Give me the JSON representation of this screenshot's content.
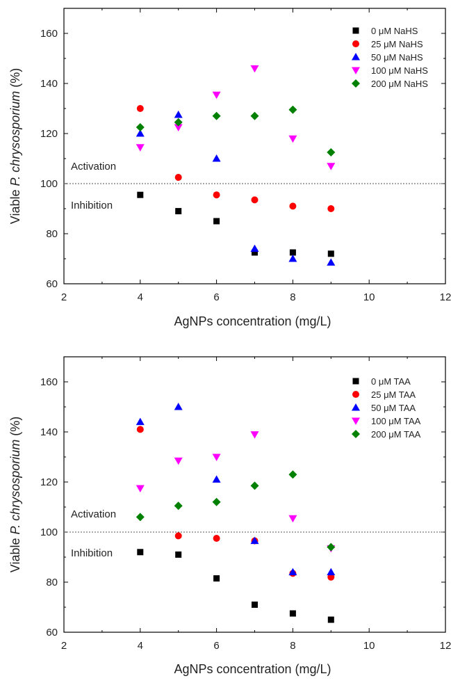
{
  "chart_data": [
    {
      "type": "scatter",
      "title": "",
      "xlabel": "AgNPs concentration (mg/L)",
      "ylabel_prefix": "Viable ",
      "ylabel_italic": "P. chrysosporium",
      "ylabel_suffix": " (%)",
      "xlim": [
        2,
        12
      ],
      "ylim": [
        60,
        170
      ],
      "xticks": [
        2,
        4,
        6,
        8,
        10,
        12
      ],
      "yticks": [
        60,
        80,
        100,
        120,
        140,
        160
      ],
      "grid": false,
      "legend_position": "top-right",
      "reference_line": 100,
      "annotations": {
        "activation": "Activation",
        "inhibition": "Inhibition"
      },
      "x": [
        4,
        5,
        6,
        7,
        8,
        9
      ],
      "series": [
        {
          "name": "0 μM NaHS",
          "marker": "square",
          "color": "#000000",
          "values": [
            95.5,
            89,
            85,
            72.5,
            72.5,
            72
          ]
        },
        {
          "name": "25 μM NaHS",
          "marker": "circle",
          "color": "#ff0000",
          "values": [
            130,
            102.5,
            95.5,
            93.5,
            91,
            90
          ]
        },
        {
          "name": "50 μM NaHS",
          "marker": "triangle-up",
          "color": "#0000ff",
          "values": [
            120,
            127.5,
            110,
            74,
            70,
            68.5
          ]
        },
        {
          "name": "100 μM NaHS",
          "marker": "triangle-down",
          "color": "#ff00ff",
          "values": [
            114.5,
            122.5,
            135.5,
            146,
            118,
            107
          ]
        },
        {
          "name": "200 μM NaHS",
          "marker": "diamond",
          "color": "#008000",
          "values": [
            122.5,
            124.5,
            127,
            127,
            129.5,
            112.5
          ]
        }
      ]
    },
    {
      "type": "scatter",
      "title": "",
      "xlabel": "AgNPs concentration (mg/L)",
      "ylabel_prefix": "Viable ",
      "ylabel_italic": "P. chrysosporium",
      "ylabel_suffix": " (%)",
      "xlim": [
        2,
        12
      ],
      "ylim": [
        60,
        170
      ],
      "xticks": [
        2,
        4,
        6,
        8,
        10,
        12
      ],
      "yticks": [
        60,
        80,
        100,
        120,
        140,
        160
      ],
      "grid": false,
      "legend_position": "top-right",
      "reference_line": 100,
      "annotations": {
        "activation": "Activation",
        "inhibition": "Inhibition"
      },
      "x": [
        4,
        5,
        6,
        7,
        8,
        9
      ],
      "series": [
        {
          "name": "0 μM TAA",
          "marker": "square",
          "color": "#000000",
          "values": [
            92,
            91,
            81.5,
            71,
            67.5,
            65
          ]
        },
        {
          "name": "25 μM TAA",
          "marker": "circle",
          "color": "#ff0000",
          "values": [
            141,
            98.5,
            97.5,
            96.5,
            83.5,
            82
          ]
        },
        {
          "name": "50 μM TAA",
          "marker": "triangle-up",
          "color": "#0000ff",
          "values": [
            144,
            150,
            121,
            96.5,
            84,
            84
          ]
        },
        {
          "name": "100 μM TAA",
          "marker": "triangle-down",
          "color": "#ff00ff",
          "values": [
            117.5,
            128.5,
            130,
            139,
            105.5,
            93.5
          ]
        },
        {
          "name": "200 μM TAA",
          "marker": "diamond",
          "color": "#008000",
          "values": [
            106,
            110.5,
            112,
            118.5,
            123,
            94
          ]
        }
      ]
    }
  ]
}
